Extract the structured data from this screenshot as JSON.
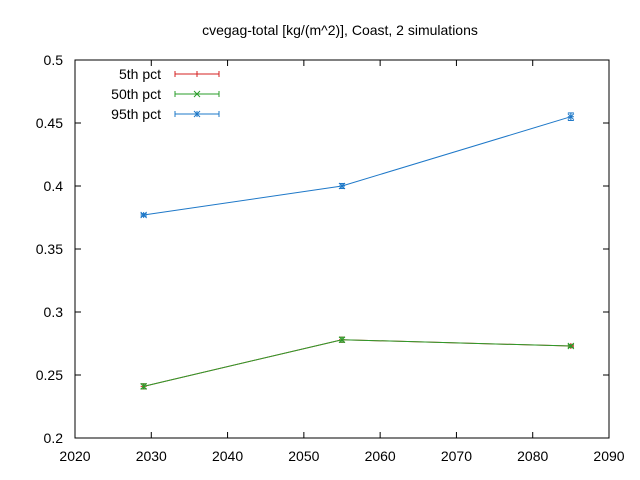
{
  "chart_data": {
    "type": "line",
    "title": "cvegag-total [kg/(m^2)], Coast, 2 simulations",
    "xlabel": "",
    "ylabel": "",
    "xlim": [
      2020,
      2090
    ],
    "ylim": [
      0.2,
      0.5
    ],
    "xticks": [
      2020,
      2030,
      2040,
      2050,
      2060,
      2070,
      2080,
      2090
    ],
    "yticks": [
      0.2,
      0.25,
      0.3,
      0.35,
      0.4,
      0.45,
      0.5
    ],
    "xtick_labels": [
      "2020",
      "2030",
      "2040",
      "2050",
      "2060",
      "2070",
      "2080",
      "2090"
    ],
    "ytick_labels": [
      "0.2",
      "0.25",
      "0.3",
      "0.35",
      "0.4",
      "0.45",
      "0.5"
    ],
    "grid": false,
    "legend_position": "top-left",
    "x": [
      2029,
      2055,
      2085
    ],
    "series": [
      {
        "name": "5th pct",
        "color": "#d62020",
        "marker": "plus",
        "values": [
          0.241,
          0.278,
          0.273
        ],
        "err": [
          0.002,
          0.002,
          0.001
        ]
      },
      {
        "name": "50th pct",
        "color": "#2a9d2a",
        "marker": "cross",
        "values": [
          0.241,
          0.278,
          0.273
        ],
        "err": [
          0.002,
          0.002,
          0.001
        ]
      },
      {
        "name": "95th pct",
        "color": "#1e78c8",
        "marker": "star",
        "values": [
          0.377,
          0.4,
          0.455
        ],
        "err": [
          0.001,
          0.002,
          0.003
        ]
      }
    ]
  }
}
